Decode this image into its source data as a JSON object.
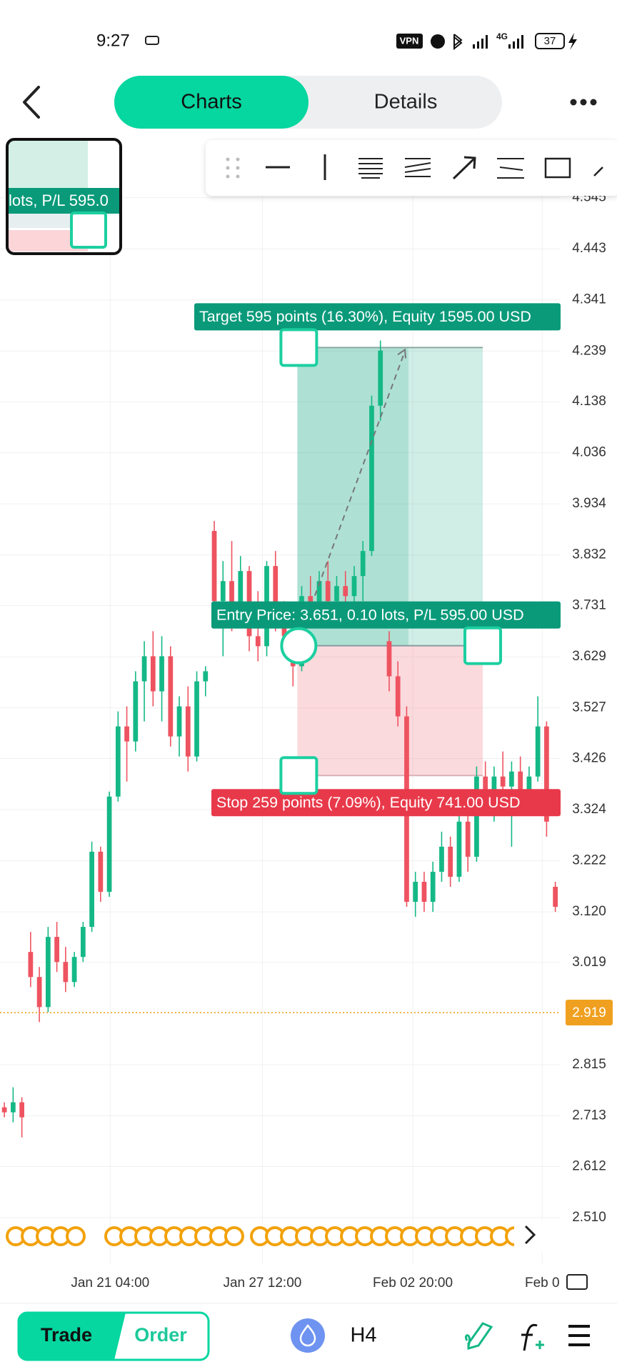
{
  "status_bar": {
    "time": "9:27",
    "vpn": "VPN",
    "network": "4G",
    "battery": "37"
  },
  "header": {
    "tabs": [
      "Charts",
      "Details"
    ]
  },
  "minimap": {
    "text": "lots, P/L 595.0"
  },
  "chart_data": {
    "type": "candlestick",
    "up_color": "#14b886",
    "down_color": "#ee5360",
    "grid": true,
    "xlim": [
      -0.5,
      63.6
    ],
    "xticks": [
      {
        "value": 12.1,
        "label": "Jan 21 04:00"
      },
      {
        "value": 29.5,
        "label": "Jan 27 12:00"
      },
      {
        "value": 46.7,
        "label": "Feb 02 20:00"
      },
      {
        "value": 61.5,
        "label": "Feb 0"
      }
    ],
    "ylim": [
      2.42,
      4.66
    ],
    "yticks": [
      4.545,
      4.443,
      4.341,
      4.239,
      4.138,
      4.036,
      3.934,
      3.832,
      3.731,
      3.629,
      3.527,
      3.426,
      3.324,
      3.222,
      {
        "value": 3.12,
        "label": "3.120"
      },
      3.019,
      2.815,
      2.713,
      2.612,
      {
        "value": 2.51,
        "label": "2.510"
      }
    ],
    "current_price": 2.919,
    "current_price_color": "#f0a020",
    "candles": [
      [
        2.73,
        2.74,
        2.71,
        2.72
      ],
      [
        2.72,
        2.77,
        2.7,
        2.74
      ],
      [
        2.74,
        2.75,
        2.67,
        2.71
      ],
      [
        3.04,
        3.08,
        2.97,
        2.99
      ],
      [
        2.99,
        3.01,
        2.9,
        2.93
      ],
      [
        2.93,
        3.09,
        2.92,
        3.07
      ],
      [
        3.07,
        3.1,
        3.0,
        3.02
      ],
      [
        3.02,
        3.05,
        2.96,
        2.98
      ],
      [
        2.98,
        3.04,
        2.97,
        3.03
      ],
      [
        3.03,
        3.1,
        3.02,
        3.09
      ],
      [
        3.09,
        3.26,
        3.08,
        3.24
      ],
      [
        3.24,
        3.25,
        3.14,
        3.16
      ],
      [
        3.16,
        3.36,
        3.15,
        3.35
      ],
      [
        3.35,
        3.52,
        3.34,
        3.49
      ],
      [
        3.49,
        3.53,
        3.38,
        3.46
      ],
      [
        3.46,
        3.6,
        3.44,
        3.58
      ],
      [
        3.58,
        3.66,
        3.5,
        3.63
      ],
      [
        3.63,
        3.68,
        3.53,
        3.56
      ],
      [
        3.56,
        3.67,
        3.5,
        3.63
      ],
      [
        3.63,
        3.65,
        3.45,
        3.47
      ],
      [
        3.47,
        3.55,
        3.43,
        3.53
      ],
      [
        3.53,
        3.57,
        3.4,
        3.43
      ],
      [
        3.43,
        3.6,
        3.42,
        3.58
      ],
      [
        3.58,
        3.61,
        3.55,
        3.6
      ],
      [
        3.88,
        3.9,
        3.72,
        3.74
      ],
      [
        3.74,
        3.82,
        3.63,
        3.78
      ],
      [
        3.78,
        3.86,
        3.68,
        3.71
      ],
      [
        3.71,
        3.83,
        3.7,
        3.8
      ],
      [
        3.8,
        3.81,
        3.64,
        3.67
      ],
      [
        3.67,
        3.76,
        3.62,
        3.65
      ],
      [
        3.65,
        3.82,
        3.63,
        3.81
      ],
      [
        3.81,
        3.84,
        3.68,
        3.7
      ],
      [
        3.7,
        3.74,
        3.64,
        3.67
      ],
      [
        3.67,
        3.69,
        3.57,
        3.61
      ],
      [
        3.61,
        3.77,
        3.6,
        3.75
      ],
      [
        3.75,
        3.79,
        3.7,
        3.73
      ],
      [
        3.73,
        3.8,
        3.71,
        3.78
      ],
      [
        3.78,
        3.82,
        3.72,
        3.74
      ],
      [
        3.74,
        3.79,
        3.72,
        3.77
      ],
      [
        3.77,
        3.8,
        3.73,
        3.75
      ],
      [
        3.75,
        3.81,
        3.73,
        3.79
      ],
      [
        3.79,
        3.86,
        3.74,
        3.84
      ],
      [
        3.84,
        4.15,
        3.83,
        4.13
      ],
      [
        4.13,
        4.26,
        4.1,
        4.24
      ],
      [
        3.66,
        3.68,
        3.56,
        3.59
      ],
      [
        3.59,
        3.62,
        3.49,
        3.51
      ],
      [
        3.51,
        3.53,
        3.13,
        3.14
      ],
      [
        3.14,
        3.2,
        3.11,
        3.18
      ],
      [
        3.18,
        3.2,
        3.12,
        3.14
      ],
      [
        3.14,
        3.22,
        3.12,
        3.2
      ],
      [
        3.2,
        3.28,
        3.18,
        3.25
      ],
      [
        3.25,
        3.27,
        3.17,
        3.19
      ],
      [
        3.19,
        3.32,
        3.18,
        3.3
      ],
      [
        3.3,
        3.33,
        3.2,
        3.23
      ],
      [
        3.23,
        3.41,
        3.22,
        3.39
      ],
      [
        3.39,
        3.42,
        3.33,
        3.35
      ],
      [
        3.35,
        3.41,
        3.3,
        3.39
      ],
      [
        3.39,
        3.44,
        3.35,
        3.37
      ],
      [
        3.37,
        3.42,
        3.25,
        3.4
      ],
      [
        3.4,
        3.43,
        3.33,
        3.36
      ],
      [
        3.36,
        3.41,
        3.34,
        3.39
      ],
      [
        3.39,
        3.55,
        3.38,
        3.49
      ],
      [
        3.49,
        3.5,
        3.27,
        3.3
      ],
      [
        3.17,
        3.18,
        3.12,
        3.13
      ]
    ],
    "position": {
      "entry": 3.651,
      "target": 4.246,
      "stop": 3.392,
      "target_label": "Target 595 points (16.30%), Equity 1595.00 USD",
      "entry_label": "Entry Price: 3.651, 0.10 lots, P/L 595.00 USD",
      "stop_label": "Stop 259 points (7.09%), Equity 741.00 USD"
    }
  },
  "bottom_bar": {
    "toggle": [
      "Trade",
      "Order"
    ],
    "timeframe": "H4"
  }
}
